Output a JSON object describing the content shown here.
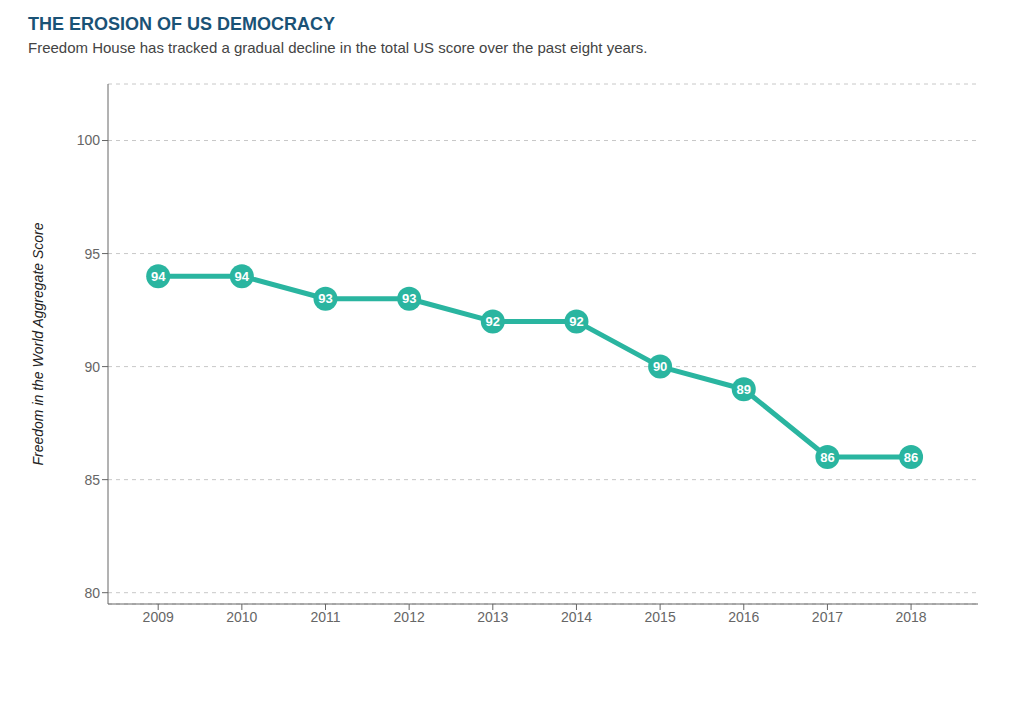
{
  "chart_data": {
    "type": "line",
    "title": "THE EROSION OF US DEMOCRACY",
    "subtitle": "Freedom House has tracked a gradual decline in the total US score over the past eight years.",
    "ylabel": "Freedom in the World Aggregate Score",
    "x": [
      2009,
      2010,
      2011,
      2012,
      2013,
      2014,
      2015,
      2016,
      2017,
      2018
    ],
    "values": [
      94,
      94,
      93,
      93,
      92,
      92,
      90,
      89,
      86,
      86
    ],
    "color": "#2ab5a0",
    "xlim": [
      2008.4,
      2018.8
    ],
    "xticks": [
      2009,
      2010,
      2011,
      2012,
      2013,
      2014,
      2015,
      2016,
      2017,
      2018
    ],
    "ylim": [
      79.5,
      102.5
    ],
    "yticks": [
      80,
      85,
      90,
      95,
      100
    ],
    "grid": true,
    "data_labels": true,
    "marker": "circle"
  }
}
